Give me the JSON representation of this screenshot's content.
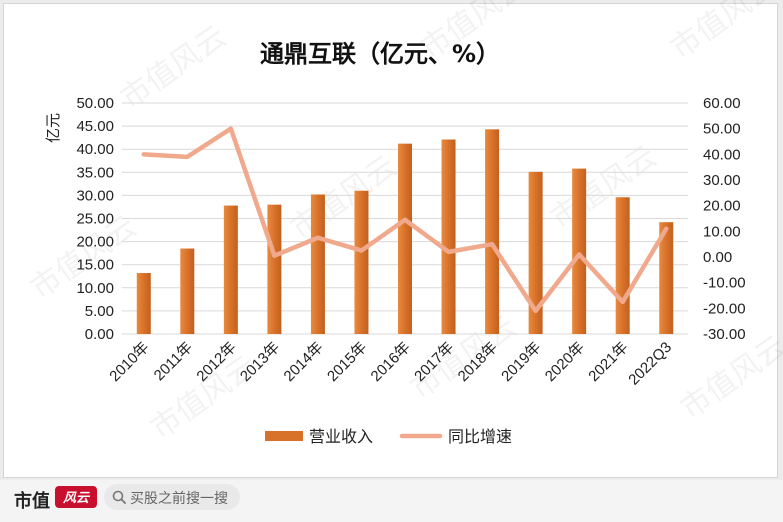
{
  "chart_data": {
    "type": "bar+line",
    "title": "通鼎互联（亿元、%）",
    "ylabel_left": "亿元",
    "categories": [
      "2010年",
      "2011年",
      "2012年",
      "2013年",
      "2014年",
      "2015年",
      "2016年",
      "2017年",
      "2018年",
      "2019年",
      "2020年",
      "2021年",
      "2022Q3"
    ],
    "y_left": {
      "min": 0,
      "max": 50,
      "ticks": [
        "0.00",
        "5.00",
        "10.00",
        "15.00",
        "20.00",
        "25.00",
        "30.00",
        "35.00",
        "40.00",
        "45.00",
        "50.00"
      ]
    },
    "y_right": {
      "min": -30,
      "max": 60,
      "ticks": [
        "-30.00",
        "-20.00",
        "-10.00",
        "0.00",
        "10.00",
        "20.00",
        "30.00",
        "40.00",
        "50.00",
        "60.00"
      ]
    },
    "series": [
      {
        "name": "营业收入",
        "type": "bar",
        "axis": "left",
        "color": "#d8722a",
        "values": [
          13.2,
          18.5,
          27.8,
          28.0,
          30.2,
          31.0,
          41.2,
          42.1,
          44.3,
          35.1,
          35.8,
          29.6,
          24.2
        ]
      },
      {
        "name": "同比增速",
        "type": "line",
        "axis": "right",
        "color": "#f0a98c",
        "values": [
          40.0,
          39.0,
          50.0,
          0.5,
          7.5,
          2.5,
          14.5,
          2.0,
          5.0,
          -21.0,
          1.0,
          -17.5,
          11.0
        ]
      }
    ],
    "legend_position": "bottom",
    "grid": true
  },
  "watermark": "市值风云",
  "footer": {
    "brand": "市值",
    "brand_stamp": "风云",
    "search_placeholder": "买股之前搜一搜",
    "search_icon": "search-icon"
  }
}
